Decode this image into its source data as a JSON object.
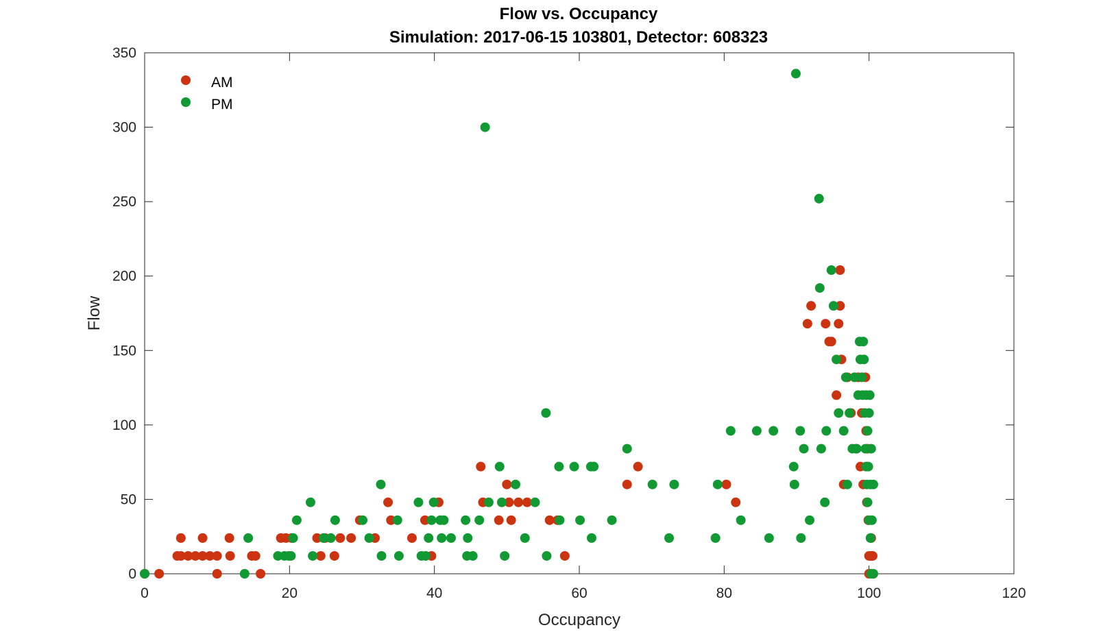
{
  "chart_data": {
    "type": "scatter",
    "title": "Flow vs. Occupancy",
    "subtitle": "Simulation:  2017-06-15 103801,  Detector:  608323",
    "xlabel": "Occupancy",
    "ylabel": "Flow",
    "xlim": [
      0,
      120
    ],
    "ylim": [
      0,
      350
    ],
    "xticks": [
      0,
      20,
      40,
      60,
      80,
      100,
      120
    ],
    "yticks": [
      0,
      50,
      100,
      150,
      200,
      250,
      300,
      350
    ],
    "grid": false,
    "legend_position": "top-left",
    "series": [
      {
        "name": "AM",
        "color": "#cc3311",
        "points": [
          [
            0,
            0
          ],
          [
            2,
            0
          ],
          [
            4.5,
            12
          ],
          [
            5,
            12
          ],
          [
            5,
            24
          ],
          [
            6,
            12
          ],
          [
            7,
            12
          ],
          [
            8,
            12
          ],
          [
            8,
            24
          ],
          [
            9,
            12
          ],
          [
            10,
            12
          ],
          [
            10,
            0
          ],
          [
            11.7,
            24
          ],
          [
            11.8,
            12
          ],
          [
            14.8,
            12
          ],
          [
            15.3,
            12
          ],
          [
            16,
            0
          ],
          [
            18.8,
            24
          ],
          [
            19.5,
            24
          ],
          [
            20.3,
            24
          ],
          [
            23.8,
            24
          ],
          [
            24.3,
            12
          ],
          [
            24.9,
            24
          ],
          [
            26.2,
            12
          ],
          [
            27,
            24
          ],
          [
            28.5,
            24
          ],
          [
            29.7,
            36
          ],
          [
            31.8,
            24
          ],
          [
            33.6,
            48
          ],
          [
            34,
            36
          ],
          [
            36.9,
            24
          ],
          [
            38.7,
            36
          ],
          [
            39.6,
            12
          ],
          [
            40.6,
            48
          ],
          [
            46.4,
            72
          ],
          [
            46.7,
            48
          ],
          [
            48.9,
            36
          ],
          [
            50,
            60
          ],
          [
            50.3,
            48
          ],
          [
            50.6,
            36
          ],
          [
            51.6,
            48
          ],
          [
            52.8,
            48
          ],
          [
            55.9,
            36
          ],
          [
            57,
            36
          ],
          [
            58,
            12
          ],
          [
            66.6,
            60
          ],
          [
            68.1,
            72
          ],
          [
            80.3,
            60
          ],
          [
            81.6,
            48
          ],
          [
            91.5,
            168
          ],
          [
            92,
            180
          ],
          [
            94,
            168
          ],
          [
            94.5,
            156
          ],
          [
            94.8,
            156
          ],
          [
            95.5,
            120
          ],
          [
            95.8,
            168
          ],
          [
            96,
            180
          ],
          [
            96,
            204
          ],
          [
            96.2,
            144
          ],
          [
            96.5,
            60
          ],
          [
            97,
            132
          ],
          [
            97.5,
            108
          ],
          [
            98.2,
            84
          ],
          [
            98.5,
            132
          ],
          [
            98.8,
            72
          ],
          [
            99,
            108
          ],
          [
            99.2,
            60
          ],
          [
            99.5,
            132
          ],
          [
            99.6,
            96
          ],
          [
            99.7,
            48
          ],
          [
            99.8,
            84
          ],
          [
            99.9,
            36
          ],
          [
            100,
            12
          ],
          [
            100,
            0
          ],
          [
            100.3,
            12
          ],
          [
            100.3,
            24
          ],
          [
            100.5,
            12
          ]
        ]
      },
      {
        "name": "PM",
        "color": "#119933",
        "points": [
          [
            0,
            0
          ],
          [
            13.8,
            0
          ],
          [
            14.3,
            24
          ],
          [
            18.4,
            12
          ],
          [
            19.3,
            12
          ],
          [
            19.9,
            12
          ],
          [
            20.2,
            12
          ],
          [
            20.5,
            24
          ],
          [
            21,
            36
          ],
          [
            22.9,
            48
          ],
          [
            23.2,
            12
          ],
          [
            24.7,
            24
          ],
          [
            25.7,
            24
          ],
          [
            26.3,
            36
          ],
          [
            30.1,
            36
          ],
          [
            31,
            24
          ],
          [
            32.6,
            60
          ],
          [
            32.7,
            12
          ],
          [
            34.9,
            36
          ],
          [
            35.1,
            12
          ],
          [
            37.8,
            48
          ],
          [
            38.2,
            12
          ],
          [
            38.8,
            12
          ],
          [
            39.2,
            24
          ],
          [
            39.6,
            36
          ],
          [
            39.9,
            48
          ],
          [
            40.8,
            36
          ],
          [
            41,
            24
          ],
          [
            41.3,
            36
          ],
          [
            42.3,
            24
          ],
          [
            44.3,
            36
          ],
          [
            44.5,
            12
          ],
          [
            44.6,
            24
          ],
          [
            45.3,
            12
          ],
          [
            46.2,
            36
          ],
          [
            47,
            300
          ],
          [
            47.5,
            48
          ],
          [
            49,
            72
          ],
          [
            49.3,
            48
          ],
          [
            49.7,
            12
          ],
          [
            51.2,
            60
          ],
          [
            52.5,
            24
          ],
          [
            53.9,
            48
          ],
          [
            55.4,
            108
          ],
          [
            55.5,
            12
          ],
          [
            57.2,
            72
          ],
          [
            57.3,
            36
          ],
          [
            59.3,
            72
          ],
          [
            60.1,
            36
          ],
          [
            61.6,
            72
          ],
          [
            61.7,
            24
          ],
          [
            62,
            72
          ],
          [
            64.5,
            36
          ],
          [
            66.6,
            84
          ],
          [
            70.1,
            60
          ],
          [
            72.4,
            24
          ],
          [
            73.1,
            60
          ],
          [
            78.8,
            24
          ],
          [
            79.1,
            60
          ],
          [
            80.9,
            96
          ],
          [
            82.3,
            36
          ],
          [
            84.5,
            96
          ],
          [
            86.2,
            24
          ],
          [
            86.8,
            96
          ],
          [
            89.6,
            72
          ],
          [
            89.7,
            60
          ],
          [
            89.9,
            336
          ],
          [
            90.5,
            96
          ],
          [
            90.6,
            24
          ],
          [
            91,
            84
          ],
          [
            91.8,
            36
          ],
          [
            93.1,
            252
          ],
          [
            93.2,
            192
          ],
          [
            93.4,
            84
          ],
          [
            93.9,
            48
          ],
          [
            94.1,
            96
          ],
          [
            94.8,
            204
          ],
          [
            95.1,
            180
          ],
          [
            95.5,
            144
          ],
          [
            95.8,
            108
          ],
          [
            96.5,
            96
          ],
          [
            96.8,
            132
          ],
          [
            97,
            60
          ],
          [
            97.3,
            108
          ],
          [
            97.7,
            84
          ],
          [
            98,
            132
          ],
          [
            98.3,
            84
          ],
          [
            98.5,
            120
          ],
          [
            98.7,
            156
          ],
          [
            98.8,
            144
          ],
          [
            99,
            132
          ],
          [
            99.1,
            120
          ],
          [
            99.2,
            156
          ],
          [
            99.3,
            144
          ],
          [
            99.4,
            108
          ],
          [
            99.5,
            84
          ],
          [
            99.6,
            72
          ],
          [
            99.6,
            120
          ],
          [
            99.7,
            60
          ],
          [
            99.8,
            48
          ],
          [
            99.8,
            96
          ],
          [
            99.9,
            72
          ],
          [
            100,
            36
          ],
          [
            100,
            108
          ],
          [
            100.1,
            120
          ],
          [
            100.2,
            60
          ],
          [
            100.2,
            24
          ],
          [
            100.3,
            84
          ],
          [
            100.4,
            36
          ],
          [
            100.6,
            60
          ],
          [
            100.3,
            0
          ],
          [
            100.6,
            0
          ]
        ]
      }
    ]
  }
}
